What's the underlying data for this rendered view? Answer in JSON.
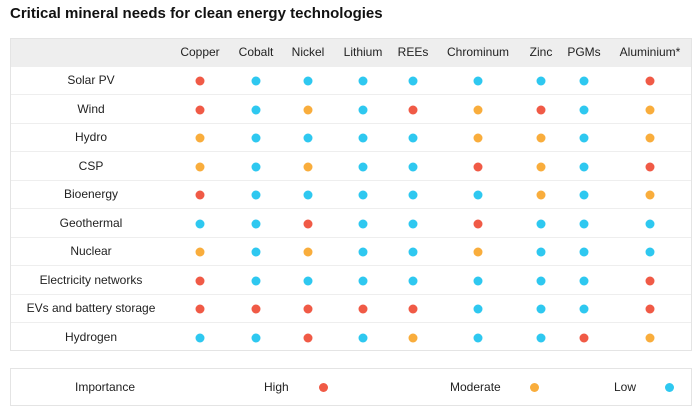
{
  "chart_data": {
    "type": "table",
    "title": "Critical mineral needs for clean energy technologies",
    "columns": [
      "Copper",
      "Cobalt",
      "Nickel",
      "Lithium",
      "REEs",
      "Chrominum",
      "Zinc",
      "PGMs",
      "Aluminium*"
    ],
    "rows": [
      {
        "label": "Solar PV",
        "values": [
          "High",
          "Low",
          "Low",
          "Low",
          "Low",
          "Low",
          "Low",
          "Low",
          "High"
        ]
      },
      {
        "label": "Wind",
        "values": [
          "High",
          "Low",
          "Moderate",
          "Low",
          "High",
          "Moderate",
          "High",
          "Low",
          "Moderate"
        ]
      },
      {
        "label": "Hydro",
        "values": [
          "Moderate",
          "Low",
          "Low",
          "Low",
          "Low",
          "Moderate",
          "Moderate",
          "Low",
          "Moderate"
        ]
      },
      {
        "label": "CSP",
        "values": [
          "Moderate",
          "Low",
          "Moderate",
          "Low",
          "Low",
          "High",
          "Moderate",
          "Low",
          "High"
        ]
      },
      {
        "label": "Bioenergy",
        "values": [
          "High",
          "Low",
          "Low",
          "Low",
          "Low",
          "Low",
          "Moderate",
          "Low",
          "Moderate"
        ]
      },
      {
        "label": "Geothermal",
        "values": [
          "Low",
          "Low",
          "High",
          "Low",
          "Low",
          "High",
          "Low",
          "Low",
          "Low"
        ]
      },
      {
        "label": "Nuclear",
        "values": [
          "Moderate",
          "Low",
          "Moderate",
          "Low",
          "Low",
          "Moderate",
          "Low",
          "Low",
          "Low"
        ]
      },
      {
        "label": "Electricity networks",
        "values": [
          "High",
          "Low",
          "Low",
          "Low",
          "Low",
          "Low",
          "Low",
          "Low",
          "High"
        ]
      },
      {
        "label": "EVs and battery storage",
        "values": [
          "High",
          "High",
          "High",
          "High",
          "High",
          "Low",
          "Low",
          "Low",
          "High"
        ]
      },
      {
        "label": "Hydrogen",
        "values": [
          "Low",
          "Low",
          "High",
          "Low",
          "Moderate",
          "Low",
          "Low",
          "High",
          "Moderate"
        ]
      }
    ],
    "legend": {
      "title": "Importance",
      "items": [
        {
          "label": "High",
          "color": "#f05a46"
        },
        {
          "label": "Moderate",
          "color": "#f9ad3c"
        },
        {
          "label": "Low",
          "color": "#2ec8f0"
        }
      ]
    }
  }
}
